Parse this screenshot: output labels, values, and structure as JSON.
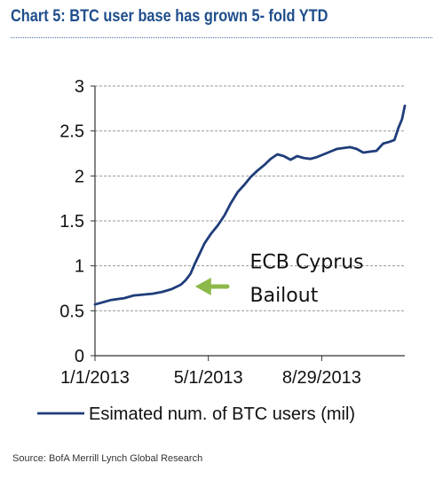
{
  "header": {
    "title": "Chart 5: BTC user base has grown 5- fold YTD",
    "source": "Source:  BofA Merrill Lynch Global Research"
  },
  "colors": {
    "title": "#1f4e8c",
    "series": "#1f3d7a",
    "arrow": "#8db94a",
    "grid": "#999999"
  },
  "chart_data": {
    "type": "line",
    "title": "Chart 5: BTC user base has grown 5- fold YTD",
    "xlabel": "",
    "ylabel": "",
    "ylim": [
      0,
      3
    ],
    "yticks": [
      "0",
      "0.5",
      "1",
      "1.5",
      "2",
      "2.5",
      "3"
    ],
    "yticks_values": [
      0,
      0.5,
      1,
      1.5,
      2,
      2.5,
      3
    ],
    "xticks": [
      "1/1/2013",
      "5/1/2013",
      "8/29/2013"
    ],
    "xticks_values": [
      "2013-01-01",
      "2013-05-01",
      "2013-08-29"
    ],
    "xlim": [
      "2013-01-01",
      "2013-11-25"
    ],
    "grid": "horizontal dashed",
    "legend_position": "bottom",
    "series": [
      {
        "name": "Esimated num. of BTC users (mil)",
        "x": [
          "2013-01-01",
          "2013-01-08",
          "2013-01-18",
          "2013-02-01",
          "2013-02-11",
          "2013-02-21",
          "2013-03-03",
          "2013-03-13",
          "2013-03-23",
          "2013-04-02",
          "2013-04-07",
          "2013-04-12",
          "2013-04-17",
          "2013-04-22",
          "2013-04-27",
          "2013-05-04",
          "2013-05-11",
          "2013-05-18",
          "2013-05-25",
          "2013-06-01",
          "2013-06-08",
          "2013-06-15",
          "2013-06-22",
          "2013-06-29",
          "2013-07-06",
          "2013-07-13",
          "2013-07-20",
          "2013-07-27",
          "2013-08-03",
          "2013-08-10",
          "2013-08-17",
          "2013-08-24",
          "2013-08-31",
          "2013-09-07",
          "2013-09-14",
          "2013-09-21",
          "2013-09-28",
          "2013-10-05",
          "2013-10-12",
          "2013-10-19",
          "2013-10-26",
          "2013-11-02",
          "2013-11-09",
          "2013-11-14",
          "2013-11-18",
          "2013-11-22",
          "2013-11-25"
        ],
        "y": [
          0.57,
          0.59,
          0.62,
          0.64,
          0.67,
          0.68,
          0.69,
          0.71,
          0.74,
          0.79,
          0.84,
          0.91,
          1.03,
          1.14,
          1.25,
          1.36,
          1.45,
          1.56,
          1.7,
          1.82,
          1.9,
          1.99,
          2.06,
          2.12,
          2.19,
          2.24,
          2.22,
          2.18,
          2.22,
          2.2,
          2.19,
          2.21,
          2.24,
          2.27,
          2.3,
          2.31,
          2.32,
          2.3,
          2.26,
          2.27,
          2.28,
          2.36,
          2.38,
          2.4,
          2.53,
          2.63,
          2.78
        ]
      }
    ],
    "annotations": [
      {
        "text": "ECB Cyprus",
        "x": "2013-06-14",
        "y": 0.97
      },
      {
        "text": "Bailout",
        "x": "2013-06-14",
        "y": 0.6
      }
    ],
    "arrow_annotation": {
      "from_x": "2013-05-21",
      "from_y": 0.77,
      "to_x": "2013-04-17",
      "to_y": 0.77
    }
  }
}
